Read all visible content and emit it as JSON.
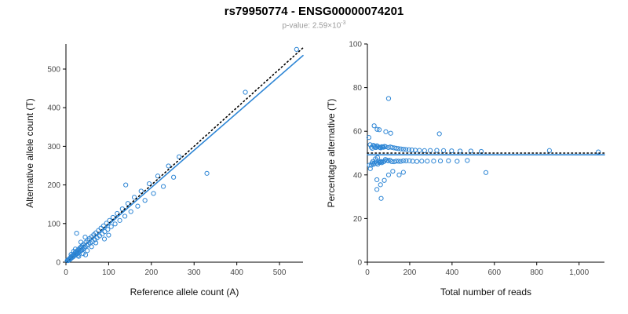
{
  "page": {
    "title": "rs79950774 - ENSG00000074201",
    "subtitle_base": "p-value: 2.59×10",
    "subtitle_exp": "-3"
  },
  "colors": {
    "accent": "#2e86d5",
    "identity_line": "#000000",
    "background": "#ffffff",
    "tick_label": "#4a4a4a",
    "subtitle": "#9a9a9a"
  },
  "chart_data": [
    {
      "type": "scatter",
      "panel": "left",
      "xlabel": "Reference allele count (A)",
      "ylabel": "Alternative allele count (T)",
      "xlim": [
        0,
        555
      ],
      "ylim": [
        0,
        565
      ],
      "xticks": [
        0,
        100,
        200,
        300,
        400,
        500
      ],
      "xtick_labels": [
        "0",
        "100",
        "200",
        "300",
        "400",
        "500"
      ],
      "yticks": [
        0,
        100,
        200,
        300,
        400,
        500
      ],
      "ytick_labels": [
        "0",
        "100",
        "200",
        "300",
        "400",
        "500"
      ],
      "marker": "open-circle",
      "points": [
        [
          3,
          4
        ],
        [
          5,
          4
        ],
        [
          6,
          7
        ],
        [
          8,
          6
        ],
        [
          9,
          10
        ],
        [
          10,
          8
        ],
        [
          11,
          12
        ],
        [
          12,
          10
        ],
        [
          12,
          20
        ],
        [
          13,
          15
        ],
        [
          14,
          12
        ],
        [
          15,
          17
        ],
        [
          16,
          13
        ],
        [
          17,
          19
        ],
        [
          18,
          15
        ],
        [
          18,
          28
        ],
        [
          19,
          21
        ],
        [
          20,
          18
        ],
        [
          21,
          24
        ],
        [
          22,
          19
        ],
        [
          22,
          34
        ],
        [
          23,
          26
        ],
        [
          24,
          20
        ],
        [
          25,
          23
        ],
        [
          25,
          75
        ],
        [
          26,
          29
        ],
        [
          27,
          22
        ],
        [
          28,
          17
        ],
        [
          28,
          31
        ],
        [
          29,
          25
        ],
        [
          30,
          15
        ],
        [
          30,
          33
        ],
        [
          31,
          26
        ],
        [
          32,
          36
        ],
        [
          33,
          28
        ],
        [
          34,
          38
        ],
        [
          35,
          30
        ],
        [
          35,
          52
        ],
        [
          36,
          40
        ],
        [
          37,
          31
        ],
        [
          38,
          43
        ],
        [
          40,
          22
        ],
        [
          40,
          34
        ],
        [
          41,
          46
        ],
        [
          43,
          37
        ],
        [
          45,
          40
        ],
        [
          45,
          65
        ],
        [
          46,
          19
        ],
        [
          47,
          52
        ],
        [
          49,
          43
        ],
        [
          50,
          30
        ],
        [
          51,
          57
        ],
        [
          53,
          46
        ],
        [
          55,
          61
        ],
        [
          57,
          50
        ],
        [
          60,
          40
        ],
        [
          60,
          66
        ],
        [
          62,
          53
        ],
        [
          65,
          71
        ],
        [
          68,
          58
        ],
        [
          70,
          50
        ],
        [
          70,
          76
        ],
        [
          73,
          63
        ],
        [
          76,
          82
        ],
        [
          79,
          68
        ],
        [
          82,
          88
        ],
        [
          85,
          73
        ],
        [
          88,
          94
        ],
        [
          90,
          60
        ],
        [
          91,
          79
        ],
        [
          95,
          101
        ],
        [
          98,
          85
        ],
        [
          100,
          70
        ],
        [
          102,
          108
        ],
        [
          106,
          92
        ],
        [
          110,
          116
        ],
        [
          115,
          99
        ],
        [
          120,
          126
        ],
        [
          126,
          108
        ],
        [
          132,
          138
        ],
        [
          138,
          119
        ],
        [
          140,
          200
        ],
        [
          145,
          152
        ],
        [
          152,
          131
        ],
        [
          160,
          168
        ],
        [
          168,
          145
        ],
        [
          176,
          184
        ],
        [
          185,
          160
        ],
        [
          195,
          203
        ],
        [
          205,
          178
        ],
        [
          215,
          223
        ],
        [
          228,
          196
        ],
        [
          240,
          249
        ],
        [
          252,
          220
        ],
        [
          265,
          273
        ],
        [
          330,
          230
        ],
        [
          420,
          440
        ],
        [
          540,
          551
        ]
      ],
      "lines": [
        {
          "name": "identity",
          "style": "dotted",
          "color": "#000000",
          "x1": 0,
          "y1": 0,
          "x2": 555,
          "y2": 555
        },
        {
          "name": "fit",
          "style": "solid",
          "color": "#2e86d5",
          "x1": 0,
          "y1": 1,
          "x2": 555,
          "y2": 535
        }
      ]
    },
    {
      "type": "scatter",
      "panel": "right",
      "xlabel": "Total number of reads",
      "ylabel": "Percentage alternative (T)",
      "xlim": [
        0,
        1120
      ],
      "ylim": [
        0,
        100
      ],
      "xticks": [
        0,
        200,
        400,
        600,
        800,
        1000
      ],
      "xtick_labels": [
        "0",
        "200",
        "400",
        "600",
        "800",
        "1,000"
      ],
      "yticks": [
        0,
        20,
        40,
        60,
        80,
        100
      ],
      "ytick_labels": [
        "0",
        "20",
        "40",
        "60",
        "80",
        "100"
      ],
      "marker": "open-circle",
      "points_derived": "x = ref+alt reads, y = 100*alt/(ref+alt), computed from left-panel allele counts",
      "lines": [
        {
          "name": "expected-50pct",
          "style": "dotted",
          "color": "#000000",
          "x1": 0,
          "y1": 50,
          "x2": 1120,
          "y2": 50
        },
        {
          "name": "fit",
          "style": "solid",
          "color": "#2e86d5",
          "x1": 0,
          "y1": 49.2,
          "x2": 1120,
          "y2": 49.2
        }
      ]
    }
  ]
}
